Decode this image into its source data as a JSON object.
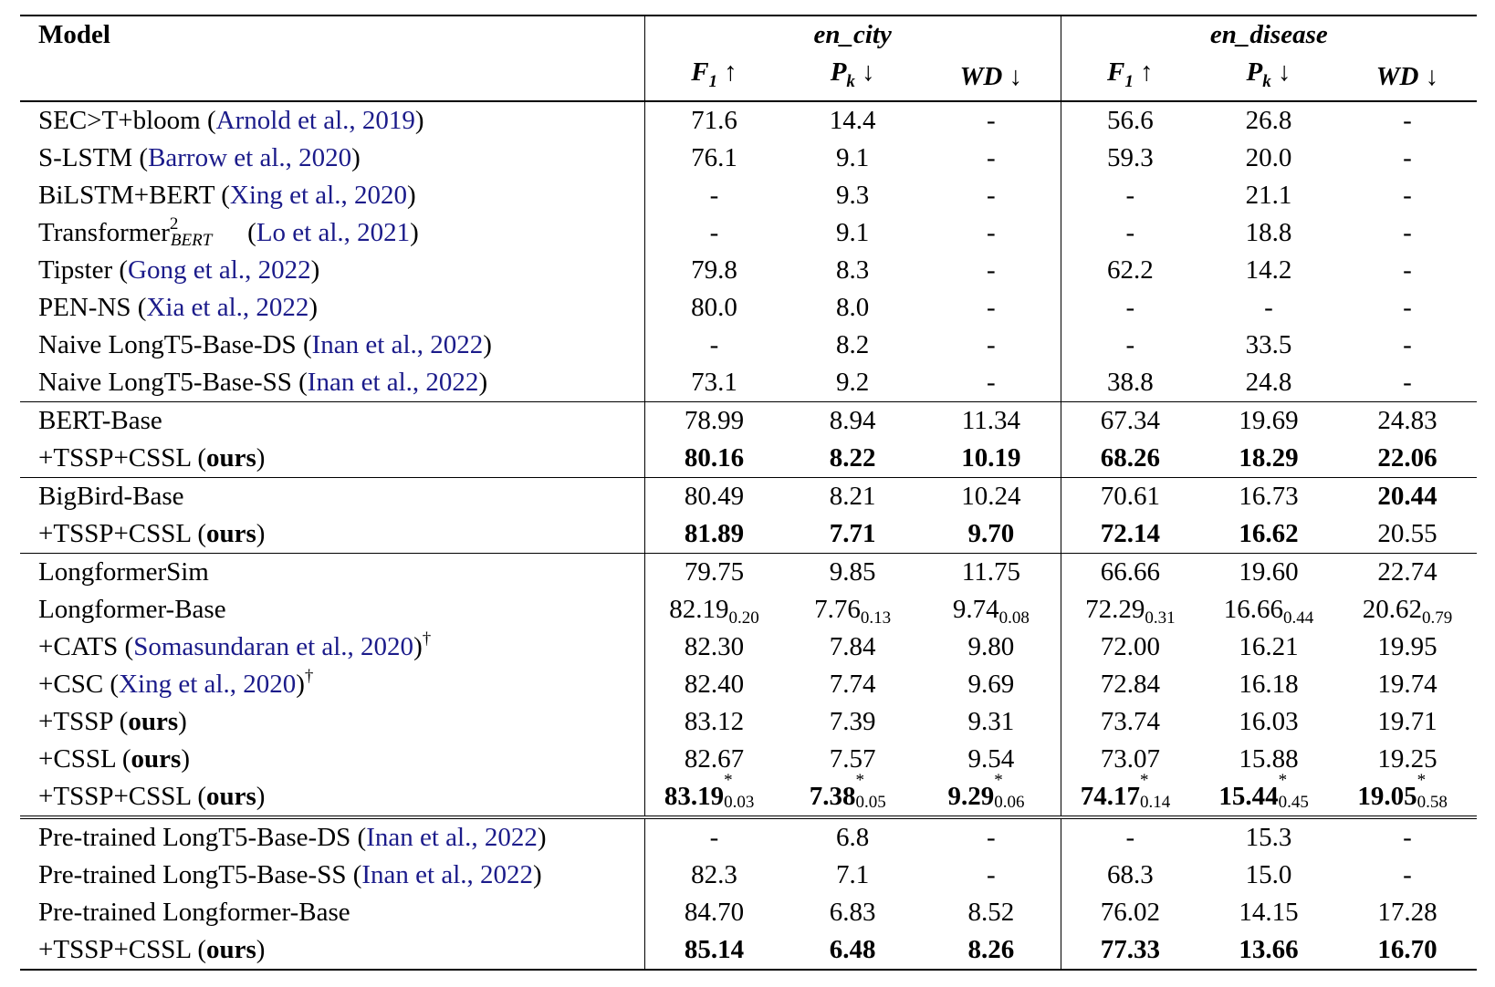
{
  "header": {
    "model_label": "Model",
    "groups": [
      "en_city",
      "en_disease"
    ],
    "metrics": [
      {
        "base": "F",
        "sub": "1",
        "arrow": "↑"
      },
      {
        "base": "P",
        "sub": "k",
        "arrow": "↓"
      },
      {
        "base": "WD",
        "sub": "",
        "arrow": "↓"
      },
      {
        "base": "F",
        "sub": "1",
        "arrow": "↑"
      },
      {
        "base": "P",
        "sub": "k",
        "arrow": "↓"
      },
      {
        "base": "WD",
        "sub": "",
        "arrow": "↓"
      }
    ]
  },
  "sections": [
    {
      "rule": "top",
      "rows": [
        {
          "model": "SEC>T+bloom",
          "cite": "Arnold et al., 2019",
          "values": [
            "71.6",
            "14.4",
            "-",
            "56.6",
            "26.8",
            "-"
          ]
        },
        {
          "model": "S-LSTM",
          "cite": "Barrow et al., 2020",
          "values": [
            "76.1",
            "9.1",
            "-",
            "59.3",
            "20.0",
            "-"
          ]
        },
        {
          "model": "BiLSTM+BERT",
          "cite": "Xing et al., 2020",
          "values": [
            "-",
            "9.3",
            "-",
            "-",
            "21.1",
            "-"
          ]
        },
        {
          "model": "Transformer",
          "model_sup": "2",
          "model_sub": "BERT",
          "cite": "Lo et al., 2021",
          "values": [
            "-",
            "9.1",
            "-",
            "-",
            "18.8",
            "-"
          ]
        },
        {
          "model": "Tipster",
          "cite": "Gong et al., 2022",
          "values": [
            "79.8",
            "8.3",
            "-",
            "62.2",
            "14.2",
            "-"
          ]
        },
        {
          "model": "PEN-NS",
          "cite": "Xia et al., 2022",
          "values": [
            "80.0",
            "8.0",
            "-",
            "-",
            "-",
            "-"
          ]
        },
        {
          "model": "Naive LongT5-Base-DS",
          "cite": "Inan et al., 2022",
          "values": [
            "-",
            "8.2",
            "-",
            "-",
            "33.5",
            "-"
          ]
        },
        {
          "model": "Naive LongT5-Base-SS",
          "cite": "Inan et al., 2022",
          "values": [
            "73.1",
            "9.2",
            "-",
            "38.8",
            "24.8",
            "-"
          ]
        }
      ]
    },
    {
      "rule": "mid",
      "rows": [
        {
          "model": "BERT-Base",
          "values": [
            "78.99",
            "8.94",
            "11.34",
            "67.34",
            "19.69",
            "24.83"
          ]
        },
        {
          "model": "+TSSP+CSSL",
          "ours": "ours",
          "values": [
            "80.16",
            "8.22",
            "10.19",
            "68.26",
            "18.29",
            "22.06"
          ],
          "bold": [
            true,
            true,
            true,
            true,
            true,
            true
          ]
        }
      ]
    },
    {
      "rule": "mid",
      "rows": [
        {
          "model": "BigBird-Base",
          "values": [
            "80.49",
            "8.21",
            "10.24",
            "70.61",
            "16.73",
            "20.44"
          ],
          "bold": [
            false,
            false,
            false,
            false,
            false,
            true
          ]
        },
        {
          "model": "+TSSP+CSSL",
          "ours": "ours",
          "values": [
            "81.89",
            "7.71",
            "9.70",
            "72.14",
            "16.62",
            "20.55"
          ],
          "bold": [
            true,
            true,
            true,
            true,
            true,
            false
          ]
        }
      ]
    },
    {
      "rule": "mid",
      "rows": [
        {
          "model": "LongformerSim",
          "values": [
            "79.75",
            "9.85",
            "11.75",
            "66.66",
            "19.60",
            "22.74"
          ]
        },
        {
          "model": "Longformer-Base",
          "values": [
            "82.19",
            "7.76",
            "9.74",
            "72.29",
            "16.66",
            "20.62"
          ],
          "subs": [
            "0.20",
            "0.13",
            "0.08",
            "0.31",
            "0.44",
            "0.79"
          ]
        },
        {
          "model": "+CATS",
          "cite": "Somasundaran et al., 2020",
          "dagger": "†",
          "values": [
            "82.30",
            "7.84",
            "9.80",
            "72.00",
            "16.21",
            "19.95"
          ]
        },
        {
          "model": "+CSC",
          "cite": "Xing et al., 2020",
          "dagger": "†",
          "values": [
            "82.40",
            "7.74",
            "9.69",
            "72.84",
            "16.18",
            "19.74"
          ]
        },
        {
          "model": "+TSSP",
          "ours": "ours",
          "values": [
            "83.12",
            "7.39",
            "9.31",
            "73.74",
            "16.03",
            "19.71"
          ]
        },
        {
          "model": "+CSSL",
          "ours": "ours",
          "values": [
            "82.67",
            "7.57",
            "9.54",
            "73.07",
            "15.88",
            "19.25"
          ]
        },
        {
          "model": "+TSSP+CSSL",
          "ours": "ours",
          "values": [
            "83.19",
            "7.38",
            "9.29",
            "74.17",
            "15.44",
            "19.05"
          ],
          "subs": [
            "0.03",
            "0.05",
            "0.06",
            "0.14",
            "0.45",
            "0.58"
          ],
          "star": "*",
          "bold": [
            true,
            true,
            true,
            true,
            true,
            true
          ]
        }
      ]
    },
    {
      "rule": "double",
      "rows": [
        {
          "model": "Pre-trained LongT5-Base-DS",
          "cite": "Inan et al., 2022",
          "values": [
            "-",
            "6.8",
            "-",
            "-",
            "15.3",
            "-"
          ]
        },
        {
          "model": "Pre-trained LongT5-Base-SS",
          "cite": "Inan et al., 2022",
          "values": [
            "82.3",
            "7.1",
            "-",
            "68.3",
            "15.0",
            "-"
          ]
        },
        {
          "model": "Pre-trained Longformer-Base",
          "values": [
            "84.70",
            "6.83",
            "8.52",
            "76.02",
            "14.15",
            "17.28"
          ]
        },
        {
          "model": "+TSSP+CSSL",
          "ours": "ours",
          "values": [
            "85.14",
            "6.48",
            "8.26",
            "77.33",
            "13.66",
            "16.70"
          ],
          "bold": [
            true,
            true,
            true,
            true,
            true,
            true
          ]
        }
      ]
    }
  ],
  "colors": {
    "text": "#000000",
    "citation": "#1b1b8a",
    "background": "#ffffff"
  }
}
